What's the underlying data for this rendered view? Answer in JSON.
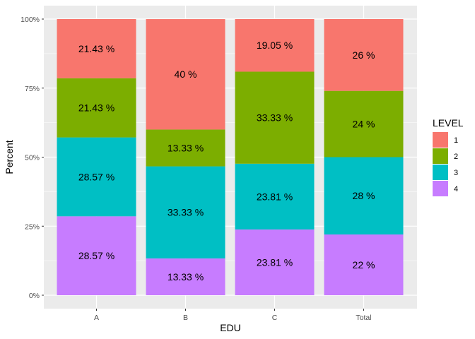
{
  "chart_data": {
    "type": "bar",
    "stacked": true,
    "percent": true,
    "categories": [
      "A",
      "B",
      "C",
      "Total"
    ],
    "series": [
      {
        "name": "1",
        "color": "#F8766D",
        "values": [
          21.43,
          40,
          19.05,
          26
        ],
        "labels": [
          "21.43 %",
          "40 %",
          "19.05 %",
          "26 %"
        ]
      },
      {
        "name": "2",
        "color": "#7CAE00",
        "values": [
          21.43,
          13.33,
          33.33,
          24
        ],
        "labels": [
          "21.43 %",
          "13.33 %",
          "33.33 %",
          "24 %"
        ]
      },
      {
        "name": "3",
        "color": "#00BFC4",
        "values": [
          28.57,
          33.33,
          23.81,
          28
        ],
        "labels": [
          "28.57 %",
          "33.33 %",
          "23.81 %",
          "28 %"
        ]
      },
      {
        "name": "4",
        "color": "#C77CFF",
        "values": [
          28.57,
          13.33,
          23.81,
          22
        ],
        "labels": [
          "28.57 %",
          "13.33 %",
          "23.81 %",
          "22 %"
        ]
      }
    ],
    "stack_order": "series 4 at bottom, series 1 at top",
    "xlabel": "EDU",
    "ylabel": "Percent",
    "ylim": [
      0,
      100
    ],
    "yticks": [
      0,
      25,
      50,
      75,
      100
    ],
    "ytick_labels": [
      "0%",
      "25%",
      "50%",
      "75%",
      "100%"
    ],
    "legend": {
      "title": "LEVEL",
      "placement": "right"
    },
    "grid": true,
    "panel_background": "#EBEBEB",
    "gridline_color": "#FFFFFF"
  }
}
